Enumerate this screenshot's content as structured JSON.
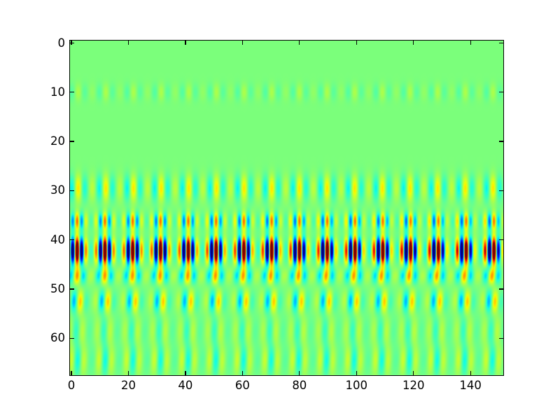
{
  "figure": {
    "background": "#ffffff",
    "title": ""
  },
  "chart_data": {
    "type": "heatmap",
    "title": "",
    "xlabel": "",
    "ylabel": "",
    "x_tick_labels": [
      "0",
      "20",
      "40",
      "60",
      "80",
      "100",
      "120",
      "140"
    ],
    "y_tick_labels": [
      "0",
      "10",
      "20",
      "30",
      "40",
      "50",
      "60"
    ],
    "x_ticks": [
      0,
      20,
      40,
      60,
      80,
      100,
      120,
      140
    ],
    "y_ticks": [
      0,
      10,
      20,
      30,
      40,
      50,
      60
    ],
    "xlim": [
      0,
      151
    ],
    "ylim": [
      67,
      0
    ],
    "y_inverted": true,
    "grid": false,
    "legend": null,
    "colormap": "jet",
    "value_mid": 0.5,
    "description": "2D array (~151 columns x ~67 rows) rendered with the jet colormap on a uniform mid-level green background. A strong oscillatory horizontal band is centered near row 42: groups of saturated dark-blue/dark-red vertical stripes (carrier wavelength ~3.25 columns) repeating in packets every ~9.7 columns with yellow flanks. Weaker yellow/cyan vertical stripe bands appear near rows 10 (very faint), 29, 36, and 47-66 (fading toward the bottom).",
    "colormap_stops": {
      "r": [
        [
          0,
          0
        ],
        [
          0.35,
          0
        ],
        [
          0.66,
          1
        ],
        [
          0.89,
          1
        ],
        [
          1,
          0.5
        ]
      ],
      "g": [
        [
          0,
          0
        ],
        [
          0.125,
          0
        ],
        [
          0.375,
          1
        ],
        [
          0.64,
          1
        ],
        [
          0.91,
          0
        ],
        [
          1,
          0
        ]
      ],
      "b": [
        [
          0,
          0.5
        ],
        [
          0.11,
          1
        ],
        [
          0.34,
          1
        ],
        [
          0.65,
          0
        ],
        [
          1,
          0
        ]
      ]
    },
    "field_model": {
      "nx": 151,
      "ny": 67,
      "group_wavelength": 9.7,
      "group_origin": 2.0,
      "bands": [
        {
          "center": 10.0,
          "sigma": 1.7,
          "amplitude": 0.06,
          "wavelength": 4.85,
          "x_offset": 1.2,
          "group_floor": 0.45,
          "y_drift": 0
        },
        {
          "center": 29.5,
          "sigma": 2.6,
          "amplitude": 0.17,
          "wavelength": 4.85,
          "x_offset": 1.2,
          "group_floor": 0.45,
          "y_drift": 0
        },
        {
          "center": 36.2,
          "sigma": 1.7,
          "amplitude": 0.3,
          "wavelength": 3.25,
          "x_offset": 1.2,
          "group_floor": 0.2,
          "y_drift": 0
        },
        {
          "center": 42.2,
          "sigma": 2.4,
          "amplitude": 0.85,
          "wavelength": 3.25,
          "x_offset": 1.2,
          "group_floor": 0.1,
          "y_drift": 0
        },
        {
          "center": 47.3,
          "sigma": 1.6,
          "amplitude": 0.25,
          "wavelength": 4.85,
          "x_offset": 0.8,
          "group_floor": 0.25,
          "y_drift": 0.15
        },
        {
          "center": 52.5,
          "sigma": 2.2,
          "amplitude": 0.22,
          "wavelength": 4.85,
          "x_offset": 2.0,
          "group_floor": 0.15,
          "y_drift": 0.12
        },
        {
          "center": 58.5,
          "sigma": 3.0,
          "amplitude": 0.09,
          "wavelength": 4.85,
          "x_offset": 2.8,
          "group_floor": 0.4,
          "y_drift": 0.1
        },
        {
          "center": 64.5,
          "sigma": 3.0,
          "amplitude": 0.13,
          "wavelength": 4.85,
          "x_offset": 3.4,
          "group_floor": 0.3,
          "y_drift": 0.1
        }
      ]
    },
    "layout": {
      "axes_left": 100,
      "axes_top": 58,
      "axes_width": 619,
      "axes_height": 478,
      "tick_length": 6,
      "tick_label_gap": 7
    }
  }
}
